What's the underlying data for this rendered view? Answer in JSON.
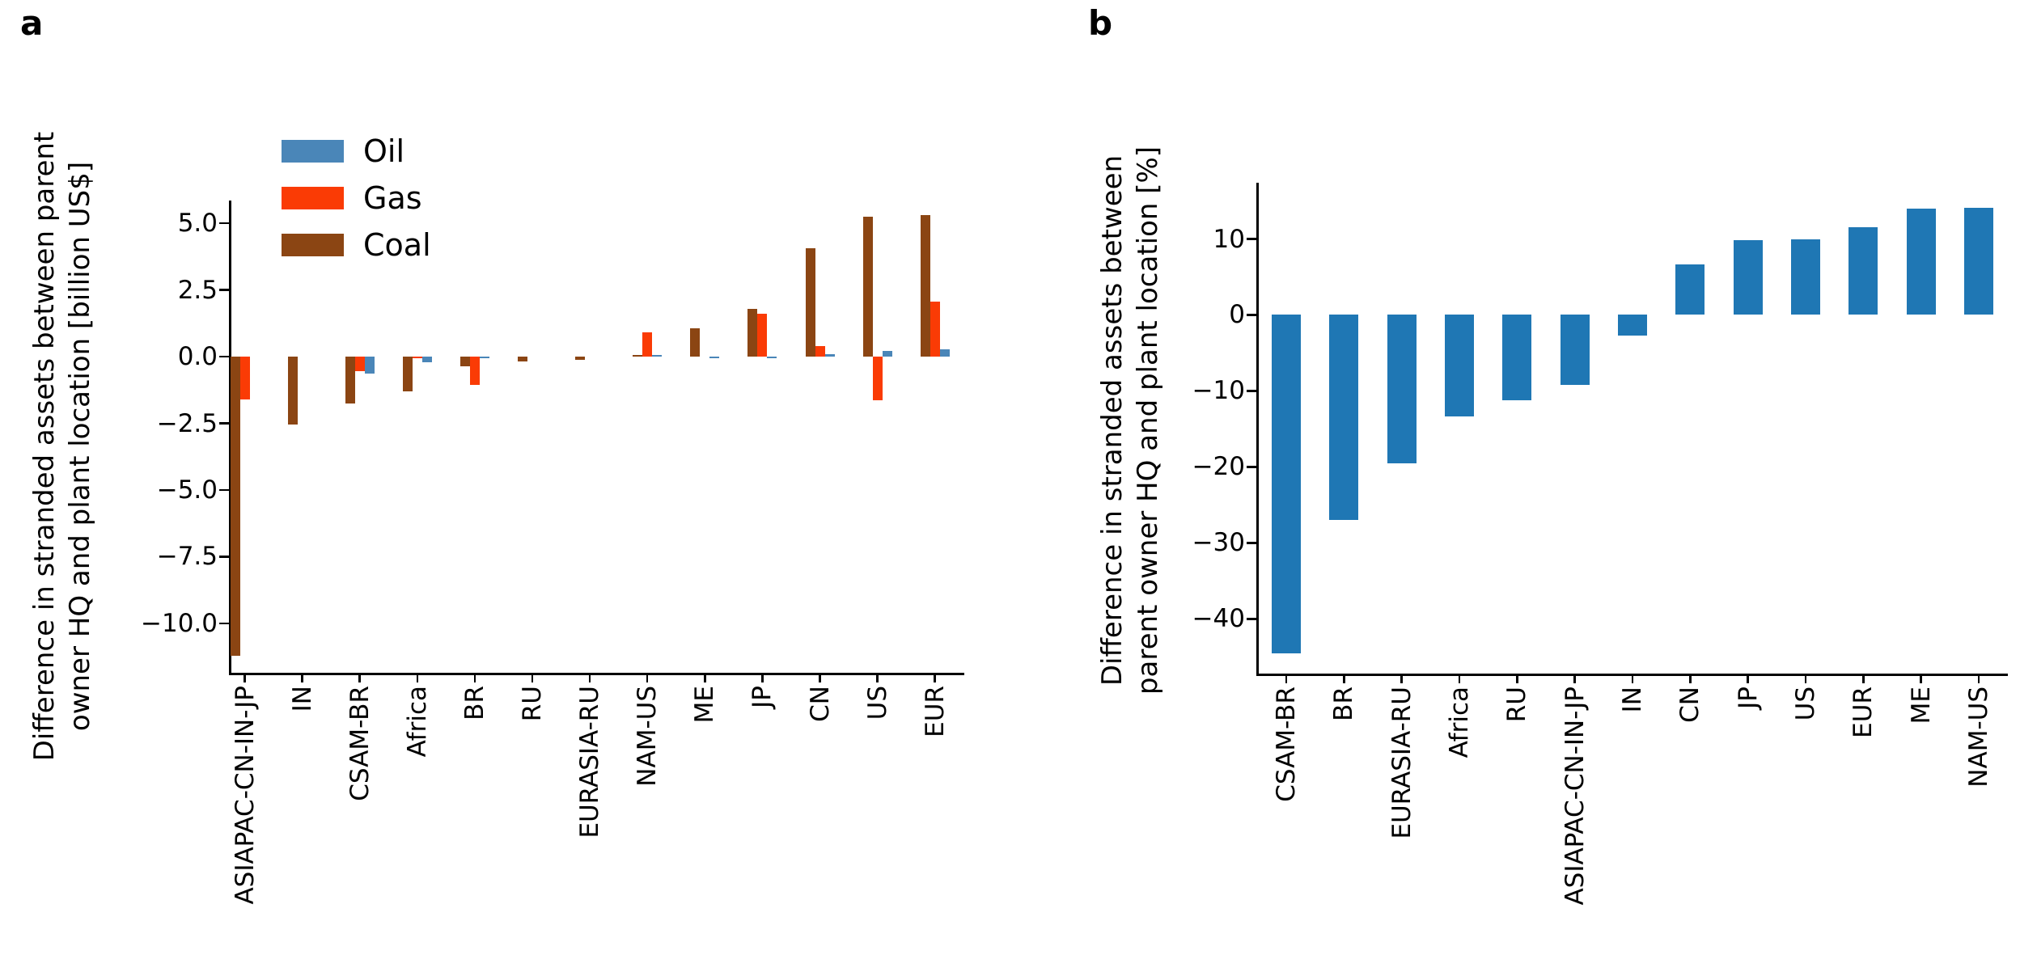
{
  "figure": {
    "panels": [
      {
        "tag": "a",
        "ylabel_line1": "Difference in stranded assets between parent",
        "ylabel_line2": "owner HQ and plant location [billion US$]"
      },
      {
        "tag": "b",
        "ylabel_line1": "Difference in stranded assets between",
        "ylabel_line2": "parent owner HQ and plant location [%]"
      }
    ]
  },
  "chart_data": [
    {
      "type": "bar",
      "panel": "a",
      "title": "",
      "xlabel": "",
      "ylabel": "Difference in stranded assets between parent owner HQ and plant location [billion US$]",
      "categories": [
        "ASIAPAC-CN-IN-JP",
        "IN",
        "CSAM-BR",
        "Africa",
        "BR",
        "RU",
        "EURASIA-RU",
        "NAM-US",
        "ME",
        "JP",
        "CN",
        "US",
        "EUR"
      ],
      "series": [
        {
          "name": "Oil",
          "color": "#4a86b8",
          "values": [
            0,
            0,
            -0.65,
            -0.22,
            -0.05,
            0,
            0,
            0.07,
            -0.05,
            -0.05,
            0.1,
            0.22,
            0.28
          ]
        },
        {
          "name": "Gas",
          "color": "#fa3b05",
          "values": [
            -1.62,
            0,
            -0.55,
            -0.06,
            -1.05,
            0,
            0,
            0.9,
            0,
            1.6,
            0.38,
            -1.65,
            2.05
          ]
        },
        {
          "name": "Coal",
          "color": "#8b4513",
          "values": [
            -11.2,
            -2.55,
            -1.75,
            -1.3,
            -0.37,
            -0.18,
            -0.12,
            0.06,
            1.05,
            1.8,
            4.05,
            5.25,
            5.3
          ]
        }
      ],
      "bar_order": [
        "Coal",
        "Gas",
        "Oil"
      ],
      "legend": {
        "position": "upper left",
        "entries": [
          "Oil",
          "Gas",
          "Coal"
        ]
      },
      "ylim": [
        -11.85,
        5.85
      ],
      "yticks": [
        {
          "v": 5.0,
          "label": "5.0"
        },
        {
          "v": 2.5,
          "label": "2.5"
        },
        {
          "v": 0.0,
          "label": "0.0"
        },
        {
          "v": -2.5,
          "label": "−2.5"
        },
        {
          "v": -5.0,
          "label": "−5.0"
        },
        {
          "v": -7.5,
          "label": "−7.5"
        },
        {
          "v": -10.0,
          "label": "−10.0"
        }
      ],
      "grid": false
    },
    {
      "type": "bar",
      "panel": "b",
      "title": "",
      "xlabel": "",
      "ylabel": "Difference in stranded assets between parent owner HQ and plant location [%]",
      "categories": [
        "CSAM-BR",
        "BR",
        "EURASIA-RU",
        "Africa",
        "RU",
        "ASIAPAC-CN-IN-JP",
        "IN",
        "CN",
        "JP",
        "US",
        "EUR",
        "ME",
        "NAM-US"
      ],
      "series": [
        {
          "name": "Difference",
          "color": "#1f77b4",
          "values": [
            -44.5,
            -27.0,
            -19.5,
            -13.4,
            -11.2,
            -9.2,
            -2.7,
            6.7,
            9.8,
            9.9,
            11.5,
            14.0,
            14.1
          ]
        }
      ],
      "bar_order": [
        "Difference"
      ],
      "legend": null,
      "ylim": [
        -47.2,
        17.4
      ],
      "yticks": [
        {
          "v": 10,
          "label": "10"
        },
        {
          "v": 0,
          "label": "0"
        },
        {
          "v": -10,
          "label": "−10"
        },
        {
          "v": -20,
          "label": "−20"
        },
        {
          "v": -30,
          "label": "−30"
        },
        {
          "v": -40,
          "label": "−40"
        }
      ],
      "grid": false
    }
  ]
}
